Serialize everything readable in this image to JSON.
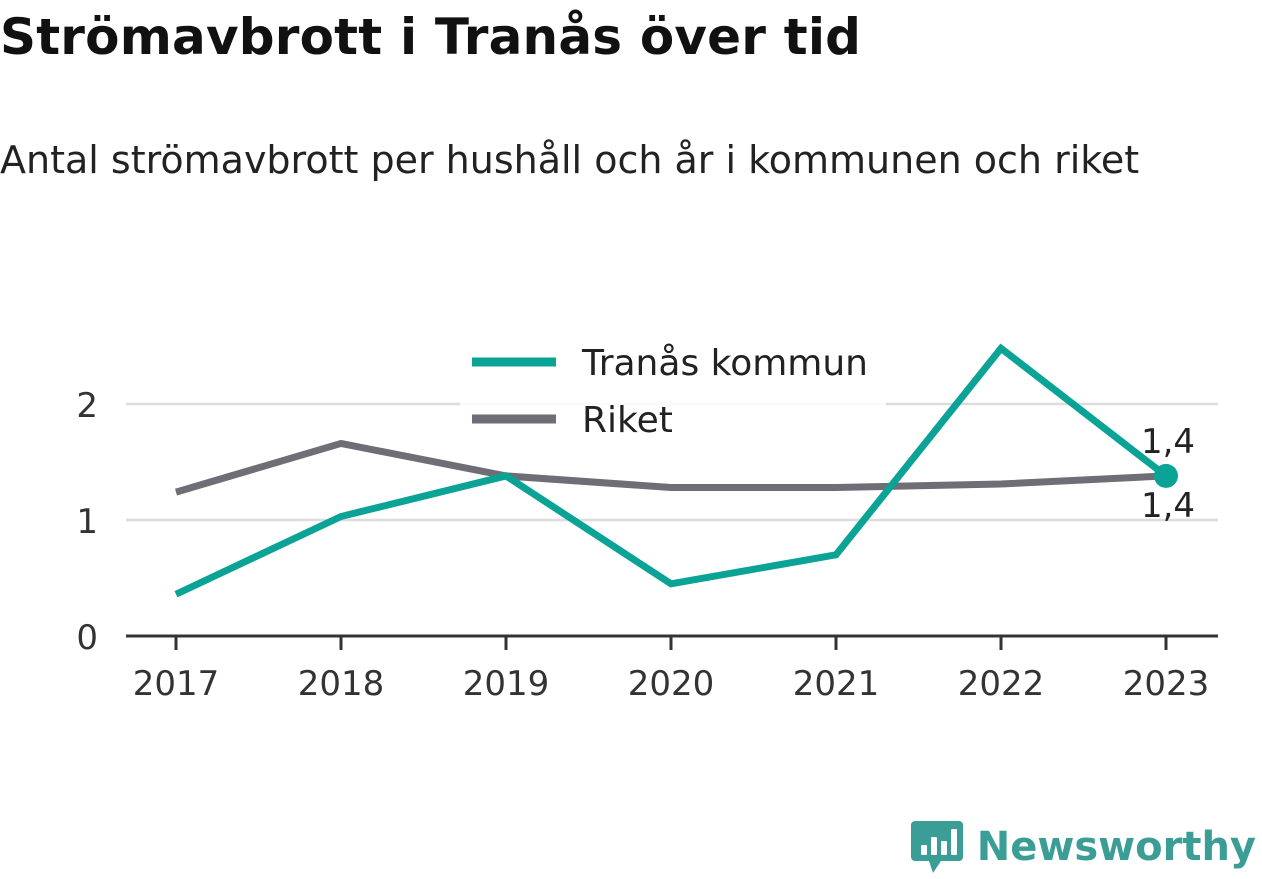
{
  "title": "Strömavbrott i Tranås över tid",
  "subtitle": "Antal strömavbrott per hushåll och år i kommunen och riket",
  "brand": {
    "name": "Newsworthy",
    "logo_icon": "newsworthy-chart-bubble-icon"
  },
  "chart_data": {
    "type": "line",
    "title": "Strömavbrott i Tranås över tid",
    "subtitle": "Antal strömavbrott per hushåll och år i kommunen och riket",
    "xlabel": "",
    "ylabel": "",
    "x": [
      "2017",
      "2018",
      "2019",
      "2020",
      "2021",
      "2022",
      "2023"
    ],
    "y_ticks": [
      0,
      1,
      2
    ],
    "y_tick_labels": [
      "0",
      "1",
      "2"
    ],
    "ylim": [
      0,
      2.5
    ],
    "grid": true,
    "legend_position": "top-center",
    "series": [
      {
        "name": "Tranås kommun",
        "color": "#0aa396",
        "values": [
          0.36,
          1.03,
          1.38,
          0.45,
          0.7,
          2.48,
          1.38
        ],
        "end_label": "1,4",
        "end_marker": true
      },
      {
        "name": "Riket",
        "color": "#6f6e76",
        "values": [
          1.24,
          1.66,
          1.38,
          1.28,
          1.28,
          1.31,
          1.38
        ],
        "end_label": "1,4",
        "end_marker": false
      }
    ]
  }
}
